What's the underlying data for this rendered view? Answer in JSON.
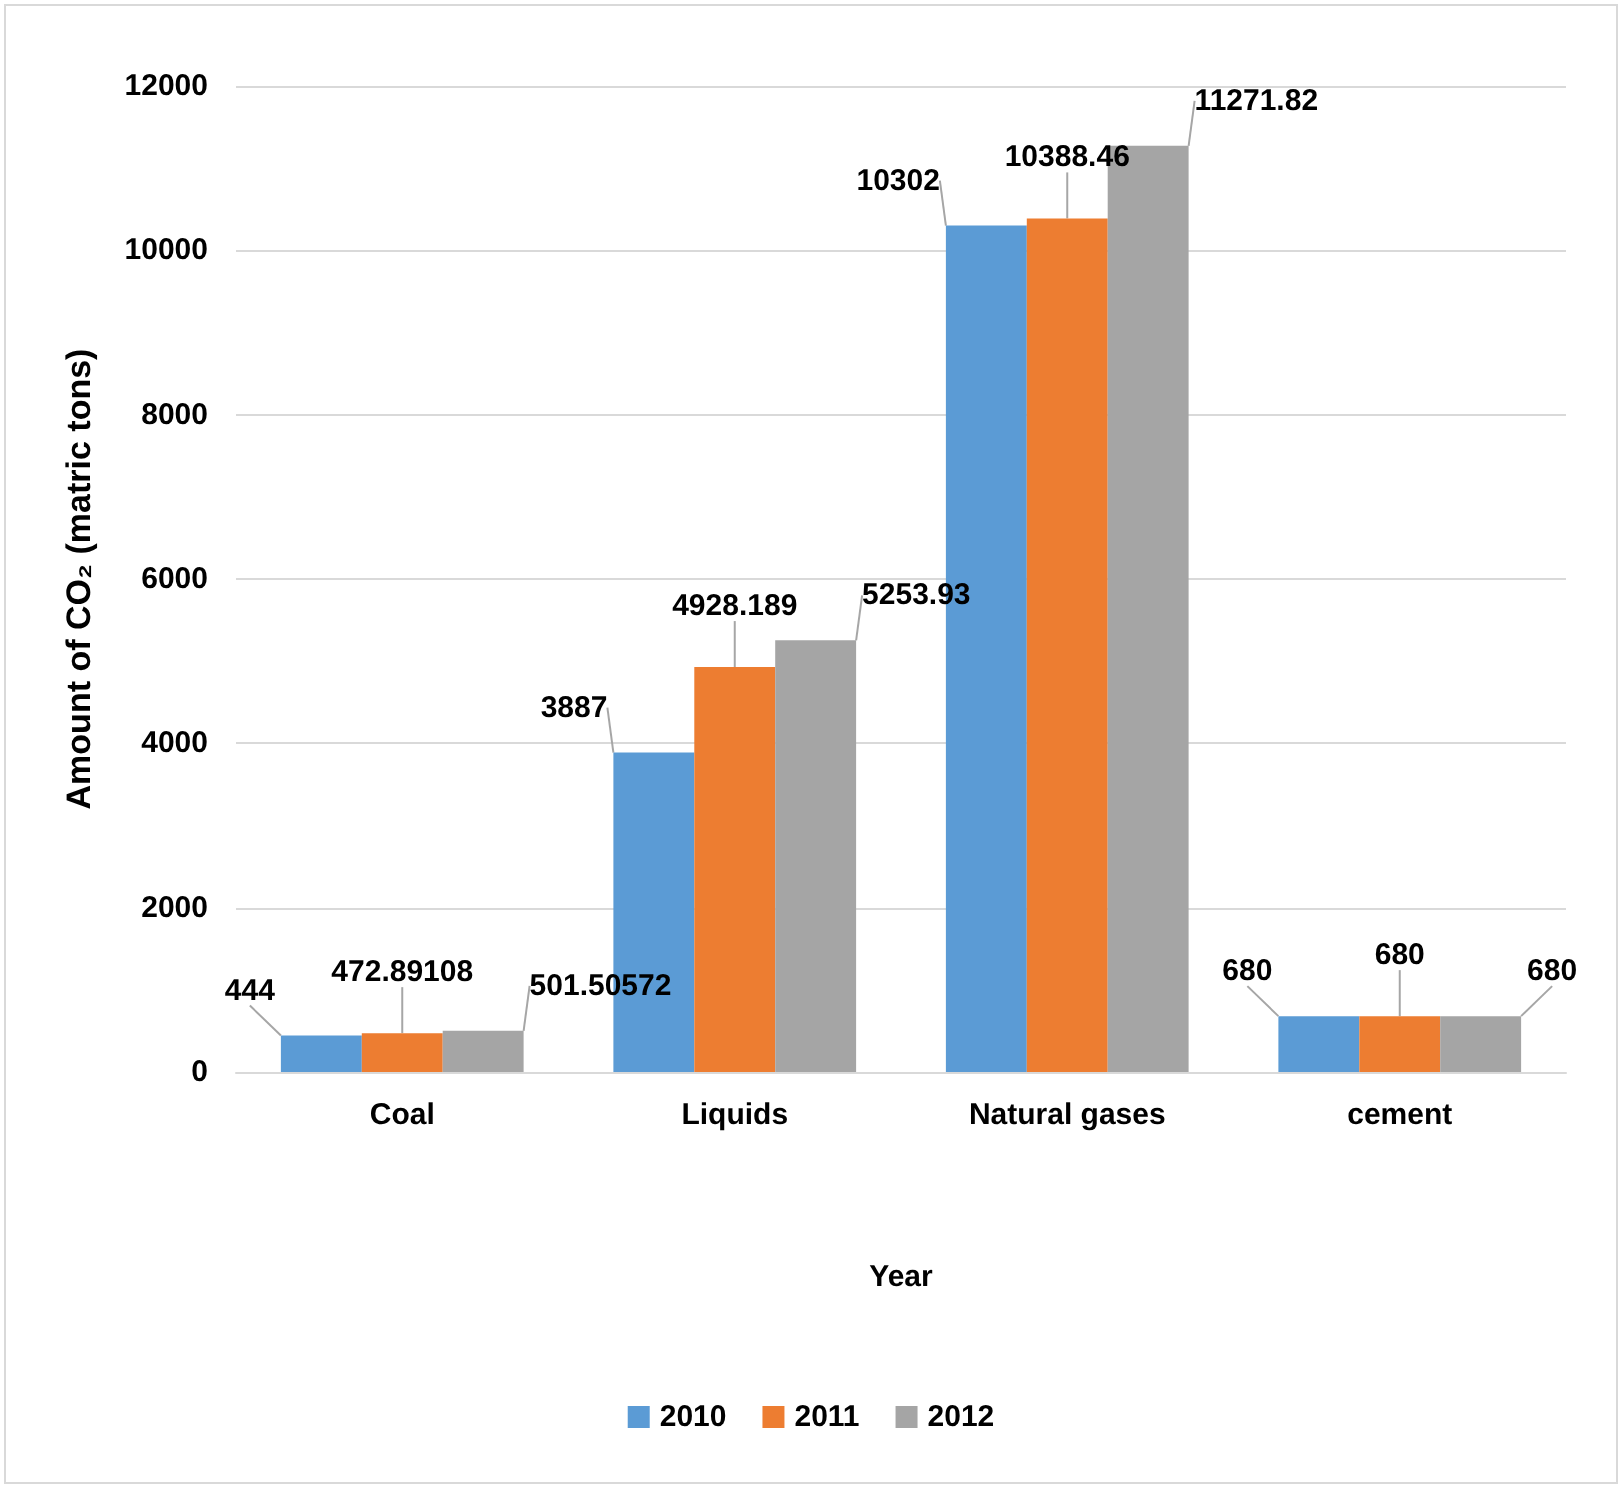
{
  "chart_data": {
    "type": "bar",
    "xlabel": "Year",
    "ylabel": "Amount of CO₂ (matric tons)",
    "categories": [
      "Coal",
      "Liquids",
      "Natural gases",
      "cement"
    ],
    "series": [
      {
        "name": "2010",
        "color": "#5b9bd5",
        "values": [
          444,
          3887,
          10302,
          680
        ]
      },
      {
        "name": "2011",
        "color": "#ed7d31",
        "values": [
          472.89108,
          4928.189,
          10388.46,
          680
        ]
      },
      {
        "name": "2012",
        "color": "#a5a5a5",
        "values": [
          501.50572,
          5253.93,
          11271.82,
          680
        ]
      }
    ],
    "ylim": [
      0,
      12000
    ],
    "yticks": [
      0,
      2000,
      4000,
      6000,
      8000,
      10000,
      12000
    ],
    "grid": "y",
    "legend": "bottom",
    "data_labels": true
  }
}
